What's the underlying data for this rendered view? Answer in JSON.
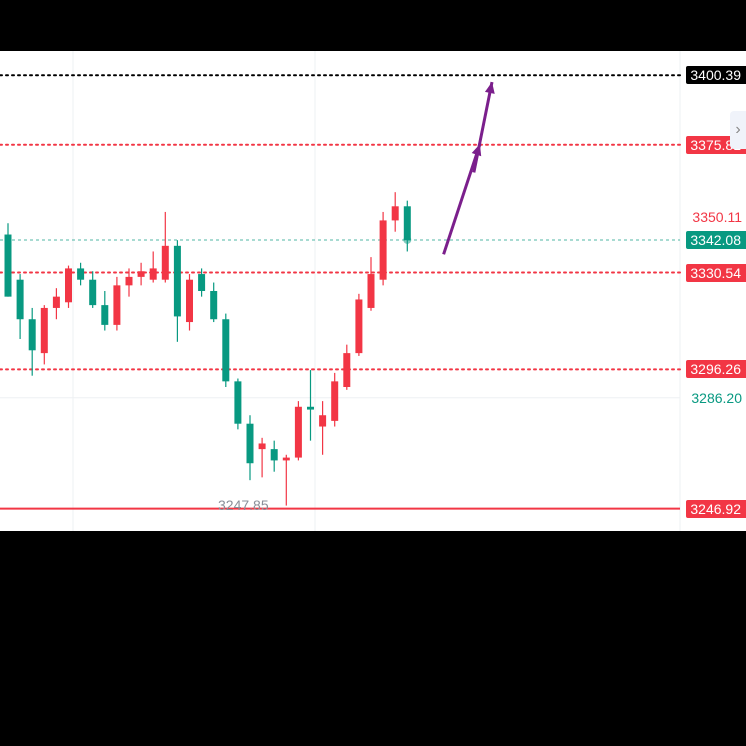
{
  "chart_data": {
    "type": "candlestick",
    "y_range": [
      3239,
      3409
    ],
    "grid": true,
    "current_price": {
      "label": "3342.08",
      "value": 3342.08,
      "color": "#089981"
    },
    "levels": [
      {
        "label": "3400.39",
        "value": 3400.39,
        "style": "dotted",
        "color": "#000000",
        "tag_bg": "#000000"
      },
      {
        "label": "3375.81",
        "value": 3375.81,
        "style": "dotted",
        "color": "#f23645",
        "tag_bg": "#f23645"
      },
      {
        "label": "3330.54",
        "value": 3330.54,
        "style": "dotted",
        "color": "#f23645",
        "tag_bg": "#f23645"
      },
      {
        "label": "3296.26",
        "value": 3296.26,
        "style": "dotted",
        "color": "#f23645",
        "tag_bg": "#f23645"
      },
      {
        "label": "3246.92",
        "value": 3246.92,
        "style": "solid",
        "color": "#f23645",
        "tag_bg": "#f23645"
      }
    ],
    "axis_plain_labels": [
      {
        "label": "3350.11",
        "value": 3350.11,
        "color": "#f23645"
      },
      {
        "label": "3286.20",
        "value": 3286.2,
        "color": "#089981"
      }
    ],
    "low_marker": {
      "label": "3247.85",
      "value": 3247.85
    },
    "candles": [
      {
        "o": 3344,
        "h": 3348,
        "l": 3322,
        "c": 3322
      },
      {
        "o": 3328,
        "h": 3330,
        "l": 3307,
        "c": 3314
      },
      {
        "o": 3314,
        "h": 3318,
        "l": 3294,
        "c": 3303
      },
      {
        "o": 3302,
        "h": 3319,
        "l": 3298,
        "c": 3318
      },
      {
        "o": 3318,
        "h": 3325,
        "l": 3314,
        "c": 3322
      },
      {
        "o": 3320,
        "h": 3333,
        "l": 3318,
        "c": 3332
      },
      {
        "o": 3332,
        "h": 3334,
        "l": 3326,
        "c": 3328
      },
      {
        "o": 3328,
        "h": 3331,
        "l": 3318,
        "c": 3319
      },
      {
        "o": 3319,
        "h": 3324,
        "l": 3310,
        "c": 3312
      },
      {
        "o": 3312,
        "h": 3329,
        "l": 3310,
        "c": 3326
      },
      {
        "o": 3326,
        "h": 3332,
        "l": 3322,
        "c": 3329
      },
      {
        "o": 3329,
        "h": 3334,
        "l": 3326,
        "c": 3331
      },
      {
        "o": 3328,
        "h": 3338,
        "l": 3327,
        "c": 3332
      },
      {
        "o": 3328,
        "h": 3352,
        "l": 3327,
        "c": 3340
      },
      {
        "o": 3340,
        "h": 3342,
        "l": 3306,
        "c": 3315
      },
      {
        "o": 3313,
        "h": 3330,
        "l": 3310,
        "c": 3328
      },
      {
        "o": 3330,
        "h": 3332,
        "l": 3322,
        "c": 3324
      },
      {
        "o": 3324,
        "h": 3327,
        "l": 3313,
        "c": 3314
      },
      {
        "o": 3314,
        "h": 3316,
        "l": 3290,
        "c": 3292
      },
      {
        "o": 3292,
        "h": 3293,
        "l": 3275,
        "c": 3277
      },
      {
        "o": 3277,
        "h": 3280,
        "l": 3257,
        "c": 3263
      },
      {
        "o": 3268,
        "h": 3272,
        "l": 3258,
        "c": 3270
      },
      {
        "o": 3268,
        "h": 3271,
        "l": 3260,
        "c": 3264
      },
      {
        "o": 3264,
        "h": 3266,
        "l": 3248,
        "c": 3265
      },
      {
        "o": 3265,
        "h": 3285,
        "l": 3264,
        "c": 3283
      },
      {
        "o": 3283,
        "h": 3296,
        "l": 3271,
        "c": 3282
      },
      {
        "o": 3276,
        "h": 3285,
        "l": 3266,
        "c": 3280
      },
      {
        "o": 3278,
        "h": 3295,
        "l": 3276,
        "c": 3292
      },
      {
        "o": 3290,
        "h": 3305,
        "l": 3289,
        "c": 3302
      },
      {
        "o": 3302,
        "h": 3323,
        "l": 3301,
        "c": 3321
      },
      {
        "o": 3318,
        "h": 3336,
        "l": 3317,
        "c": 3330
      },
      {
        "o": 3328,
        "h": 3352,
        "l": 3326,
        "c": 3349
      },
      {
        "o": 3349,
        "h": 3359,
        "l": 3345,
        "c": 3354
      },
      {
        "o": 3354,
        "h": 3356,
        "l": 3338,
        "c": 3342
      }
    ],
    "forecast_arrows": [
      {
        "from_candle": 36,
        "from": 3337,
        "to_candle": 39,
        "to": 3376,
        "color": "#7b1f8c"
      },
      {
        "from_candle": 38.5,
        "from": 3366,
        "to_candle": 40,
        "to": 3398,
        "color": "#7b1f8c"
      }
    ]
  }
}
